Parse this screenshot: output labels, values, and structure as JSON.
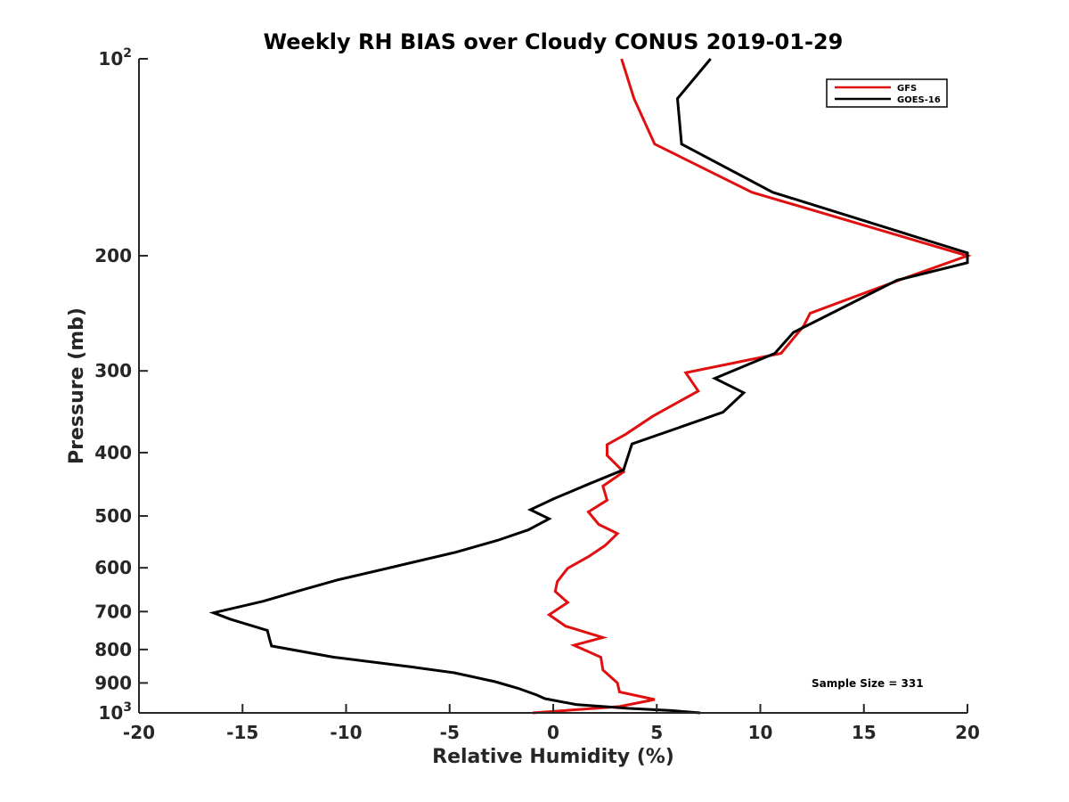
{
  "chart_data": {
    "type": "line",
    "title": "Weekly RH BIAS over Cloudy CONUS 2019-01-29",
    "xlabel": "Relative Humidity (%)",
    "ylabel": "Pressure (mb)",
    "xlim": [
      -20,
      20
    ],
    "ylim": [
      100,
      1000
    ],
    "yscale": "log",
    "y_reversed": true,
    "grid": false,
    "legend_position": "top-right",
    "x_ticks": [
      -20,
      -15,
      -10,
      -5,
      0,
      5,
      10,
      15,
      20
    ],
    "x_tick_labels": [
      "-20",
      "-15",
      "-10",
      "-5",
      "0",
      "5",
      "10",
      "15",
      "20"
    ],
    "y_ticks": [
      100,
      200,
      300,
      400,
      500,
      600,
      700,
      800,
      900,
      1000
    ],
    "y_tick_labels": [
      {
        "base": "10",
        "exp": "2"
      },
      {
        "base": "200"
      },
      {
        "base": "300"
      },
      {
        "base": "400"
      },
      {
        "base": "500"
      },
      {
        "base": "600"
      },
      {
        "base": "700"
      },
      {
        "base": "800"
      },
      {
        "base": "900"
      },
      {
        "base": "10",
        "exp": "3"
      }
    ],
    "annotation": "Sample Size = 331",
    "series": [
      {
        "name": "GFS",
        "color": "#e01010",
        "points": [
          [
            3.3,
            100
          ],
          [
            3.9,
            115
          ],
          [
            4.9,
            135
          ],
          [
            9.6,
            160
          ],
          [
            20.0,
            200
          ],
          [
            16.7,
            218
          ],
          [
            12.4,
            245
          ],
          [
            12.1,
            256
          ],
          [
            11.0,
            282
          ],
          [
            6.4,
            302
          ],
          [
            7.0,
            322
          ],
          [
            4.8,
            352
          ],
          [
            3.5,
            375
          ],
          [
            2.6,
            389
          ],
          [
            2.6,
            404
          ],
          [
            3.4,
            428
          ],
          [
            2.4,
            450
          ],
          [
            2.6,
            473
          ],
          [
            1.7,
            493
          ],
          [
            2.2,
            515
          ],
          [
            3.1,
            532
          ],
          [
            2.5,
            555
          ],
          [
            1.7,
            577
          ],
          [
            0.7,
            601
          ],
          [
            0.2,
            630
          ],
          [
            0.1,
            652
          ],
          [
            0.7,
            678
          ],
          [
            -0.2,
            708
          ],
          [
            0.6,
            737
          ],
          [
            2.4,
            767
          ],
          [
            1.0,
            788
          ],
          [
            2.3,
            822
          ],
          [
            2.4,
            860
          ],
          [
            3.1,
            900
          ],
          [
            3.2,
            929
          ],
          [
            4.9,
            954
          ],
          [
            3.2,
            978
          ],
          [
            -1.0,
            1000
          ]
        ]
      },
      {
        "name": "GOES-16",
        "color": "#000000",
        "points": [
          [
            7.6,
            100
          ],
          [
            6.0,
            115
          ],
          [
            6.2,
            135
          ],
          [
            10.6,
            160
          ],
          [
            20.0,
            198
          ],
          [
            20.0,
            205
          ],
          [
            16.6,
            218
          ],
          [
            13.1,
            248
          ],
          [
            11.6,
            262
          ],
          [
            10.7,
            282
          ],
          [
            7.8,
            308
          ],
          [
            9.2,
            324
          ],
          [
            8.2,
            347
          ],
          [
            3.8,
            388
          ],
          [
            3.4,
            425
          ],
          [
            1.7,
            447
          ],
          [
            0.0,
            471
          ],
          [
            -1.1,
            489
          ],
          [
            -0.2,
            505
          ],
          [
            -1.2,
            525
          ],
          [
            -2.7,
            545
          ],
          [
            -4.7,
            568
          ],
          [
            -7.5,
            596
          ],
          [
            -10.4,
            626
          ],
          [
            -12.3,
            651
          ],
          [
            -14.0,
            675
          ],
          [
            -16.4,
            703
          ],
          [
            -15.6,
            719
          ],
          [
            -13.8,
            748
          ],
          [
            -13.7,
            770
          ],
          [
            -13.6,
            790
          ],
          [
            -10.6,
            822
          ],
          [
            -6.9,
            850
          ],
          [
            -4.8,
            868
          ],
          [
            -2.8,
            896
          ],
          [
            -1.7,
            917
          ],
          [
            -0.8,
            939
          ],
          [
            -0.4,
            951
          ],
          [
            1.1,
            971
          ],
          [
            3.6,
            984
          ],
          [
            5.7,
            992
          ],
          [
            7.1,
            1000
          ]
        ]
      }
    ]
  }
}
